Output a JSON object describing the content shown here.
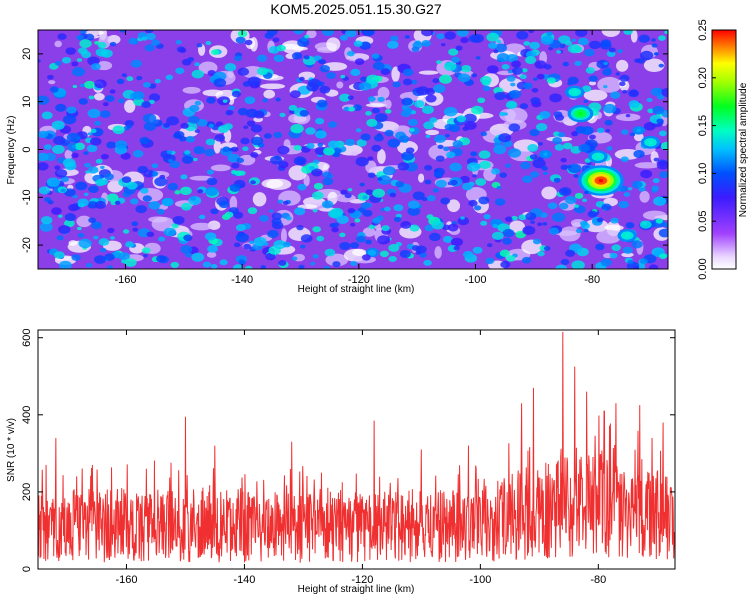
{
  "figure": {
    "title": "KOM5.2025.051.15.30.G27"
  },
  "chart_data": [
    {
      "type": "heatmap",
      "xlabel": "Height of straight line (km)",
      "ylabel": "Frequency (Hz)",
      "xlim": [
        -175,
        -67
      ],
      "ylim": [
        -25,
        25
      ],
      "xticks": [
        -160,
        -140,
        -120,
        -100,
        -80
      ],
      "yticks": [
        -20,
        -10,
        0,
        10,
        20
      ],
      "colorbar": {
        "label": "Normalized spectral amplitude",
        "range": [
          0,
          0.25
        ],
        "ticks": [
          "0.00",
          "0.05",
          "0.10",
          "0.15",
          "0.20",
          "0.25"
        ]
      },
      "hotspots": [
        {
          "x": -78.5,
          "y": -6.5,
          "amplitude": 0.25
        },
        {
          "x": -82,
          "y": 7.5,
          "amplitude": 0.17
        },
        {
          "x": -83,
          "y": 12,
          "amplitude": 0.14
        },
        {
          "x": -79,
          "y": -1.5,
          "amplitude": 0.14
        },
        {
          "x": -70,
          "y": 1.5,
          "amplitude": 0.14
        },
        {
          "x": -74,
          "y": -18,
          "amplitude": 0.14
        },
        {
          "x": -88,
          "y": -1,
          "amplitude": 0.12
        },
        {
          "x": -88,
          "y": -5,
          "amplitude": 0.11
        },
        {
          "x": -96,
          "y": -8,
          "amplitude": 0.11
        },
        {
          "x": -72,
          "y": 4,
          "amplitude": 0.12
        },
        {
          "x": -69,
          "y": 20,
          "amplitude": 0.1
        },
        {
          "x": -81,
          "y": -9,
          "amplitude": 0.1
        }
      ],
      "background_level": 0.04
    },
    {
      "type": "line",
      "xlabel": "Height of straight line (km)",
      "ylabel": "SNR (10 * v/v)",
      "xlim": [
        -175,
        -67
      ],
      "ylim": [
        0,
        620
      ],
      "xticks": [
        -160,
        -140,
        -120,
        -100,
        -80
      ],
      "yticks": [
        0,
        200,
        400,
        600
      ],
      "series": [
        {
          "color": "#f03030",
          "profile_x": [
            -175,
            -160,
            -150,
            -140,
            -130,
            -120,
            -110,
            -100,
            -95,
            -90,
            -85,
            -80,
            -75,
            -70,
            -67
          ],
          "profile_mean": [
            115,
            115,
            112,
            110,
            108,
            110,
            110,
            115,
            135,
            150,
            160,
            160,
            150,
            140,
            125
          ],
          "peaks": [
            {
              "x": -86,
              "y": 615
            },
            {
              "x": -84,
              "y": 525
            },
            {
              "x": -91,
              "y": 470
            },
            {
              "x": -82,
              "y": 460
            },
            {
              "x": -93,
              "y": 430
            },
            {
              "x": -77,
              "y": 430
            },
            {
              "x": -73,
              "y": 425
            },
            {
              "x": -79,
              "y": 410
            },
            {
              "x": -150,
              "y": 395
            },
            {
              "x": -118,
              "y": 385
            },
            {
              "x": -69,
              "y": 380
            },
            {
              "x": -172,
              "y": 340
            },
            {
              "x": -132,
              "y": 330
            },
            {
              "x": -145,
              "y": 320
            },
            {
              "x": -102,
              "y": 320
            },
            {
              "x": -110,
              "y": 310
            }
          ]
        }
      ]
    }
  ]
}
